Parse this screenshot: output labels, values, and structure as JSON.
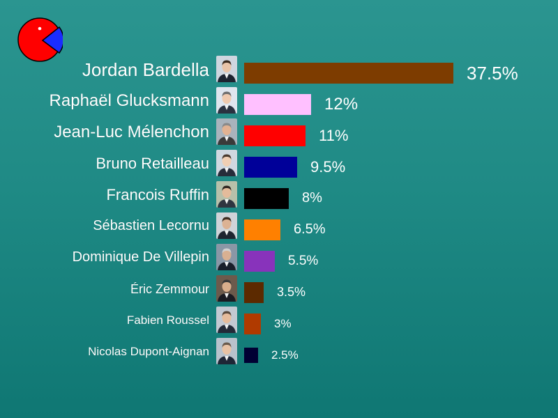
{
  "logo": {
    "icon": "pie-logo-icon",
    "colors": [
      "#ff0000",
      "#1a2cff"
    ]
  },
  "chart_data": {
    "type": "bar",
    "orientation": "horizontal",
    "unit": "%",
    "title": "",
    "xlabel": "",
    "ylabel": "",
    "xlim": [
      0,
      37.5
    ],
    "grid": false,
    "legend": "none",
    "categories": [
      "Jordan Bardella",
      "Raphaël Glucksmann",
      "Jean-Luc Mélenchon",
      "Bruno Retailleau",
      "Francois Ruffin",
      "Sébastien Lecornu",
      "Dominique De Villepin",
      "Éric Zemmour",
      "Fabien Roussel",
      "Nicolas Dupont-Aignan"
    ],
    "values": [
      37.5,
      12,
      11,
      9.5,
      8,
      6.5,
      5.5,
      3.5,
      3,
      2.5
    ],
    "value_labels": [
      "37.5%",
      "12%",
      "11%",
      "9.5%",
      "8%",
      "6.5%",
      "5.5%",
      "3.5%",
      "3%",
      "2.5%"
    ],
    "colors": [
      "#7d3c00",
      "#ffc0ff",
      "#ff0000",
      "#000099",
      "#000000",
      "#ff8000",
      "#8833bb",
      "#5c2a00",
      "#b03a00",
      "#000033"
    ],
    "avatar_icons": [
      "portrait-icon",
      "portrait-icon",
      "portrait-icon",
      "portrait-icon",
      "portrait-icon",
      "portrait-icon",
      "portrait-icon",
      "portrait-icon",
      "portrait-icon",
      "portrait-icon"
    ]
  }
}
